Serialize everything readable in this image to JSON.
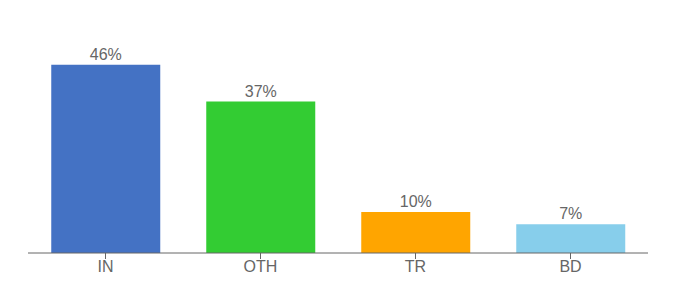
{
  "chart_data": {
    "type": "bar",
    "categories": [
      "IN",
      "OTH",
      "TR",
      "BD"
    ],
    "values": [
      46,
      37,
      10,
      7
    ],
    "value_labels": [
      "46%",
      "37%",
      "10%",
      "7%"
    ],
    "colors": [
      "#4472C4",
      "#33CC33",
      "#FFA500",
      "#87CEEB"
    ],
    "ylim": [
      0,
      54
    ],
    "data_labels": true,
    "tick_labels": "x",
    "grid": false
  }
}
